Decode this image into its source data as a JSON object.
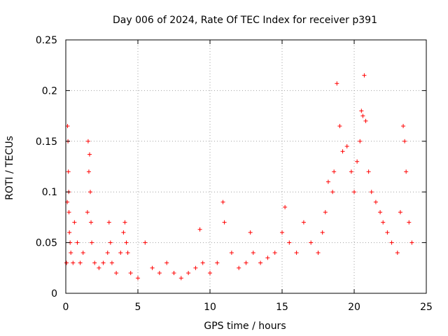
{
  "chart_data": {
    "type": "scatter",
    "title": "Day 006 of 2024, Rate Of TEC Index for receiver p391",
    "xlabel": "GPS time / hours",
    "ylabel": "ROTI / TECUs",
    "xlim": [
      0,
      25
    ],
    "ylim": [
      0,
      0.25
    ],
    "xticks": [
      0,
      5,
      10,
      15,
      20,
      25
    ],
    "yticks": [
      0,
      0.05,
      0.1,
      0.15,
      0.2,
      0.25
    ],
    "xtick_labels": [
      "0",
      "5",
      "10",
      "15",
      "20",
      "25"
    ],
    "ytick_labels": [
      "0",
      "0.05",
      "0.1",
      "0.15",
      "0.2",
      "0.25"
    ],
    "grid": true,
    "marker": "+",
    "color": "#ff0000",
    "series": [
      {
        "x": [
          0.05,
          0.1,
          0.12,
          0.15,
          0.18,
          0.2,
          0.22,
          0.25,
          0.3,
          0.35,
          0.5,
          0.6,
          0.8,
          1.0,
          1.2,
          1.5,
          1.55,
          1.6,
          1.65,
          1.7,
          1.75,
          1.8,
          2.0,
          2.3,
          2.6,
          2.9,
          3.0,
          3.1,
          3.2,
          3.5,
          3.8,
          4.0,
          4.1,
          4.2,
          4.3,
          4.5,
          5.0,
          5.5,
          6.0,
          6.5,
          7.0,
          7.5,
          8.0,
          8.5,
          9.0,
          9.3,
          9.5,
          10.0,
          10.5,
          10.9,
          11.0,
          11.5,
          12.0,
          12.5,
          12.8,
          13.0,
          13.5,
          14.0,
          14.5,
          15.0,
          15.2,
          15.5,
          16.0,
          16.5,
          17.0,
          17.5,
          17.8,
          18.0,
          18.2,
          18.5,
          18.6,
          18.8,
          19.0,
          19.2,
          19.5,
          19.8,
          20.0,
          20.2,
          20.4,
          20.5,
          20.6,
          20.7,
          20.8,
          21.0,
          21.2,
          21.5,
          21.8,
          22.0,
          22.3,
          22.6,
          23.0,
          23.2,
          23.4,
          23.5,
          23.6,
          23.8,
          24.0
        ],
        "y": [
          0.03,
          0.09,
          0.165,
          0.15,
          0.12,
          0.1,
          0.08,
          0.06,
          0.05,
          0.04,
          0.03,
          0.07,
          0.05,
          0.03,
          0.04,
          0.08,
          0.15,
          0.12,
          0.137,
          0.1,
          0.07,
          0.05,
          0.03,
          0.025,
          0.03,
          0.04,
          0.07,
          0.05,
          0.03,
          0.02,
          0.04,
          0.06,
          0.07,
          0.05,
          0.04,
          0.02,
          0.015,
          0.05,
          0.025,
          0.02,
          0.03,
          0.02,
          0.015,
          0.02,
          0.025,
          0.063,
          0.03,
          0.02,
          0.03,
          0.09,
          0.07,
          0.04,
          0.025,
          0.03,
          0.06,
          0.04,
          0.03,
          0.035,
          0.04,
          0.06,
          0.085,
          0.05,
          0.04,
          0.07,
          0.05,
          0.04,
          0.06,
          0.08,
          0.11,
          0.1,
          0.12,
          0.207,
          0.165,
          0.14,
          0.145,
          0.12,
          0.1,
          0.13,
          0.15,
          0.18,
          0.175,
          0.215,
          0.17,
          0.12,
          0.1,
          0.09,
          0.08,
          0.07,
          0.06,
          0.05,
          0.04,
          0.08,
          0.165,
          0.15,
          0.12,
          0.07,
          0.05
        ]
      }
    ]
  }
}
